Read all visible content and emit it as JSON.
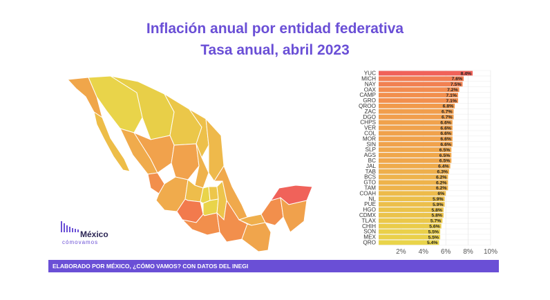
{
  "title_line1": "Inflación anual por entidad federativa",
  "title_line2": "Tasa anual, abril 2023",
  "logo": {
    "name": "México",
    "subtitle": "cómovamos"
  },
  "footer": "ELABORADO POR MÉXICO, ¿CÓMO VAMOS? CON DATOS DEL INEGI",
  "colors": {
    "accent": "#6a4fd6",
    "high": "#f0625a",
    "low": "#e9d44a"
  },
  "chart_data": {
    "type": "bar",
    "orientation": "horizontal",
    "categories": [
      "YUC",
      "MICH",
      "NAY",
      "OAX",
      "CAMP",
      "GRO",
      "QROO",
      "ZAC",
      "DGO",
      "CHPS",
      "VER",
      "COL",
      "MOR",
      "SIN",
      "SLP",
      "AGS",
      "BC",
      "JAL",
      "TAB",
      "BCS",
      "GTO",
      "TAM",
      "COAH",
      "NL",
      "PUE",
      "HGO",
      "CDMX",
      "TLAX",
      "CHIH",
      "SON",
      "MEX",
      "QRO"
    ],
    "values": [
      8.4,
      7.6,
      7.5,
      7.2,
      7.1,
      7.1,
      6.8,
      6.7,
      6.7,
      6.6,
      6.6,
      6.6,
      6.6,
      6.6,
      6.5,
      6.5,
      6.5,
      6.4,
      6.3,
      6.2,
      6.2,
      6.2,
      6,
      5.9,
      5.9,
      5.8,
      5.8,
      5.7,
      5.6,
      5.5,
      5.5,
      5.4
    ],
    "value_labels": [
      "8.4%",
      "7.6%",
      "7.5%",
      "7.2%",
      "7.1%",
      "7.1%",
      "6.8%",
      "6.7%",
      "6.7%",
      "6.6%",
      "6.6%",
      "6.6%",
      "6.6%",
      "6.6%",
      "6.5%",
      "6.5%",
      "6.5%",
      "6.4%",
      "6.3%",
      "6.2%",
      "6.2%",
      "6.2%",
      "6%",
      "5.9%",
      "5.9%",
      "5.8%",
      "5.8%",
      "5.7%",
      "5.6%",
      "5.5%",
      "5.5%",
      "5.4%"
    ],
    "x_ticks": [
      2,
      4,
      6,
      8,
      10
    ],
    "x_tick_labels": [
      "2%",
      "4%",
      "6%",
      "8%",
      "10%"
    ],
    "xlim": [
      0,
      10
    ],
    "grid": true
  }
}
